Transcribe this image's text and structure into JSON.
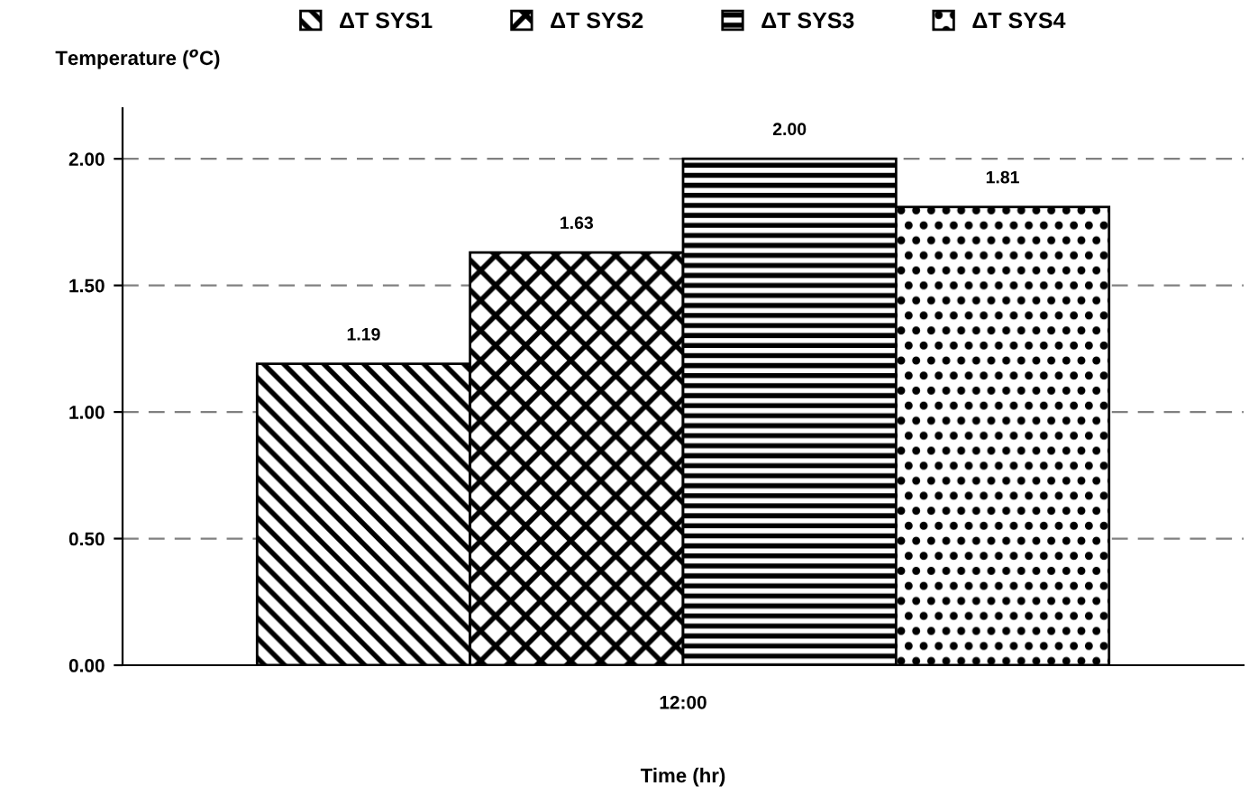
{
  "chart_data": {
    "type": "bar",
    "xlabel": "Time (hr)",
    "ylabel": "Temperature ($^{o}$C)",
    "categories": [
      "12:00"
    ],
    "series": [
      {
        "name": "ΔT SYS1",
        "color": "#000000",
        "values": [
          1.19
        ],
        "value_labels": [
          "1.19"
        ]
      },
      {
        "name": "ΔT SYS2",
        "color": "#000000",
        "values": [
          1.63
        ],
        "value_labels": [
          "1.63"
        ]
      },
      {
        "name": "ΔT SYS3",
        "color": "#000000",
        "values": [
          2.0
        ],
        "value_labels": [
          "2.00"
        ]
      },
      {
        "name": "ΔT SYS4",
        "color": "#000000",
        "values": [
          1.81
        ],
        "value_labels": [
          "1.81"
        ]
      }
    ],
    "ylim": [
      0,
      2.2
    ],
    "yticks": [
      {
        "value": 0,
        "label": "0.00"
      },
      {
        "value": 0.5,
        "label": "0.50"
      },
      {
        "value": 1,
        "label": "1.00"
      },
      {
        "value": 1.5,
        "label": "1.50"
      },
      {
        "value": 2,
        "label": "2.00"
      }
    ],
    "grid": "y",
    "legend": "top"
  }
}
